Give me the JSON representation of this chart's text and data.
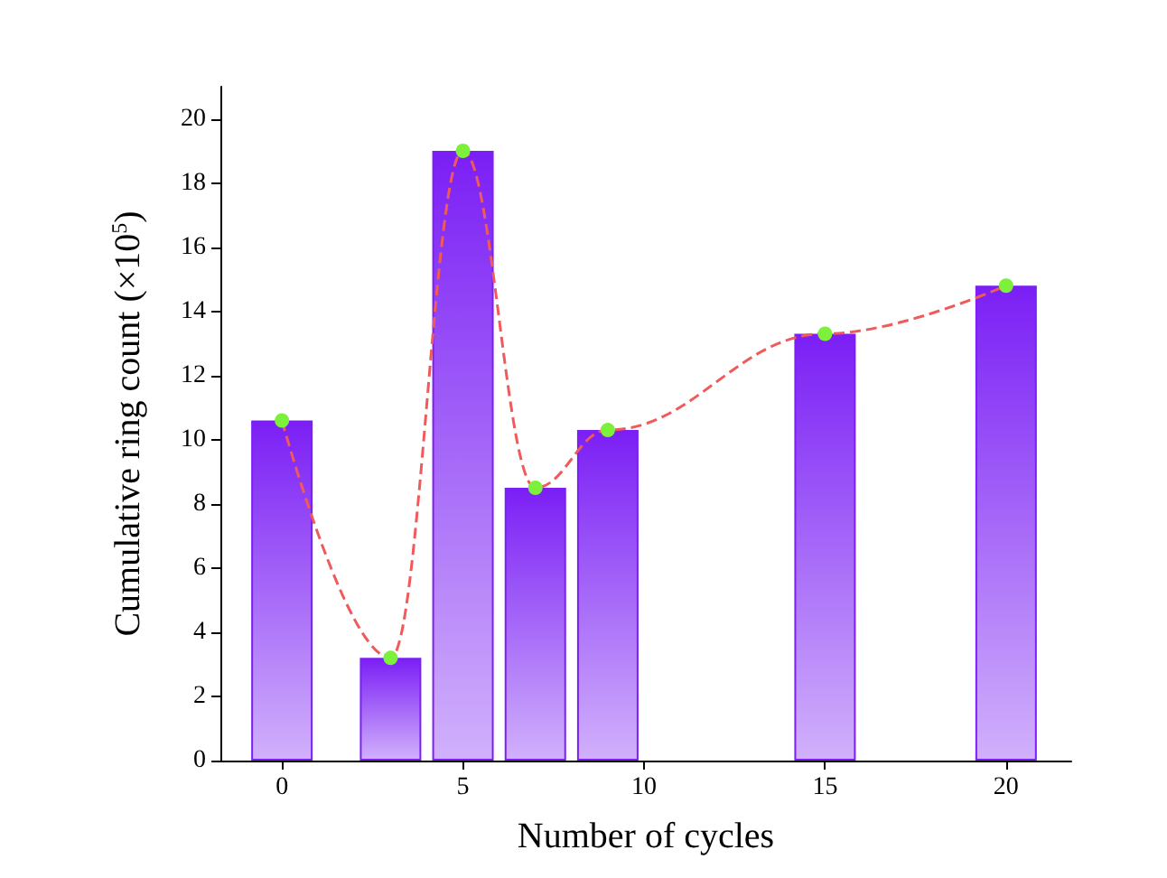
{
  "chart_data": {
    "type": "bar",
    "xlabel": "Number of cycles",
    "ylabel": "Cumulative ring count (×10$^{5}$)",
    "x": [
      0,
      3,
      5,
      7,
      9,
      15,
      20
    ],
    "series": [
      {
        "color": "#7b1ff5",
        "values": [
          10.6,
          3.2,
          19.0,
          8.5,
          10.3,
          13.3,
          14.8
        ]
      },
      {
        "type": "line",
        "color": "#f05a5a",
        "colors": [
          "#7cf03a",
          "#7cf03a",
          "#7cf03a",
          "#7cf03a",
          "#7cf03a",
          "#7cf03a",
          "#7cf03a"
        ],
        "values": [
          10.6,
          3.2,
          19.0,
          8.5,
          10.3,
          13.3,
          14.8
        ],
        "marker": "circle",
        "line_style": "dashed"
      }
    ],
    "xlim": [
      -1.7,
      21.8
    ],
    "xticks": [
      0,
      5,
      10,
      15,
      20
    ],
    "ylim": [
      0,
      21
    ],
    "yticks": [
      0,
      2,
      4,
      6,
      8,
      10,
      12,
      14,
      16,
      18,
      20
    ],
    "grid": false
  }
}
